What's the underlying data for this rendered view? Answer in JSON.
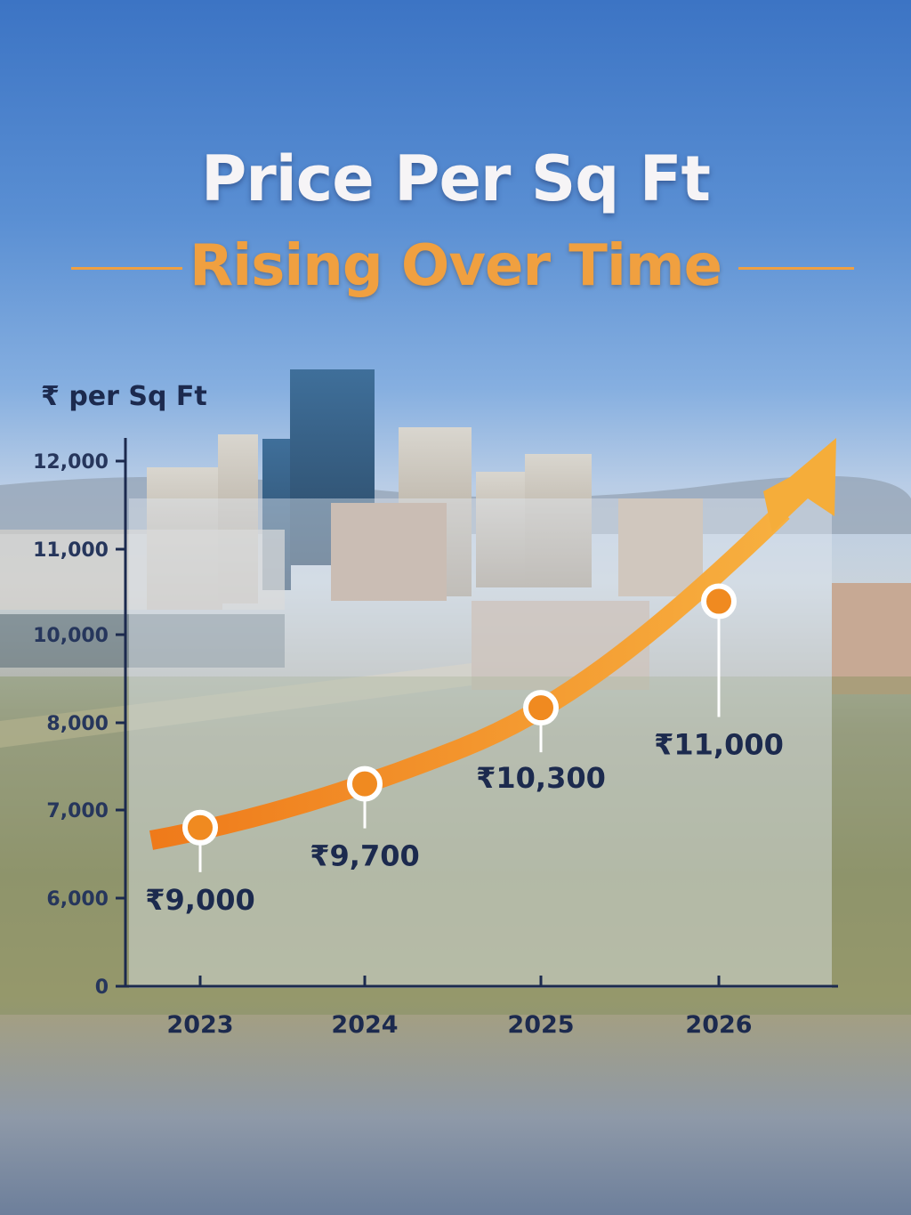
{
  "title": "Price Per Sq Ft",
  "subtitle": "Rising Over Time",
  "chart_data": {
    "type": "line",
    "title": "Price Per Sq Ft Rising Over Time",
    "ylabel": "₹ per Sq Ft",
    "xlabel": "",
    "categories": [
      "2023",
      "2024",
      "2025",
      "2026"
    ],
    "values": [
      9000,
      9700,
      10300,
      11000
    ],
    "data_labels": [
      "₹9,000",
      "₹9,700",
      "₹10,300",
      "₹11,000"
    ],
    "plotted_positions_on_axis": [
      6800,
      7300,
      8340,
      10390
    ],
    "y_ticks": [
      0,
      6000,
      7000,
      8000,
      10000,
      11000,
      12000
    ],
    "y_tick_labels": [
      "0",
      "6,000",
      "7,000",
      "8,000",
      "10,000",
      "11,000",
      "12,000"
    ],
    "grid": false,
    "legend": "none",
    "colors": {
      "line": "#f08a20",
      "axis": "#1c2a4e",
      "marker": "#f08a20"
    }
  }
}
